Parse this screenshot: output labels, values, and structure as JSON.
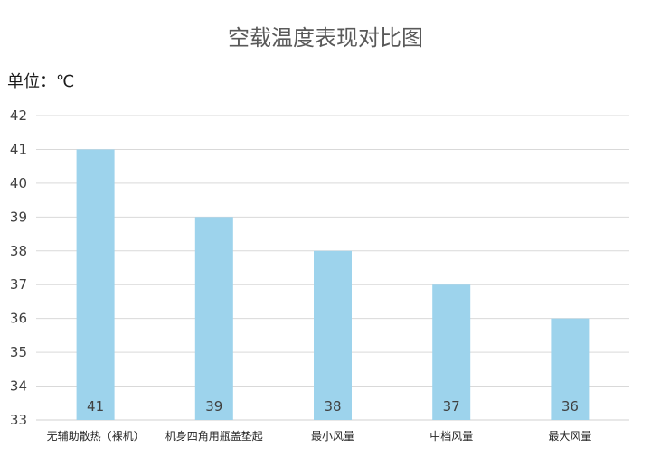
{
  "chart_data": {
    "type": "bar",
    "title": "空载温度表现对比图",
    "unit_label": "单位：℃",
    "categories": [
      "无辅助散热（裸机）",
      "机身四角用瓶盖垫起",
      "最小风量",
      "中档风量",
      "最大风量"
    ],
    "values": [
      41,
      39,
      38,
      37,
      36
    ],
    "data_labels": [
      "41",
      "39",
      "38",
      "37",
      "36"
    ],
    "ylim": [
      33,
      42
    ],
    "yticks": [
      "33",
      "34",
      "35",
      "36",
      "37",
      "38",
      "39",
      "40",
      "41",
      "42"
    ],
    "grid": true,
    "bar_color": "#9dd3ec",
    "grid_color": "#d9d9d9"
  }
}
